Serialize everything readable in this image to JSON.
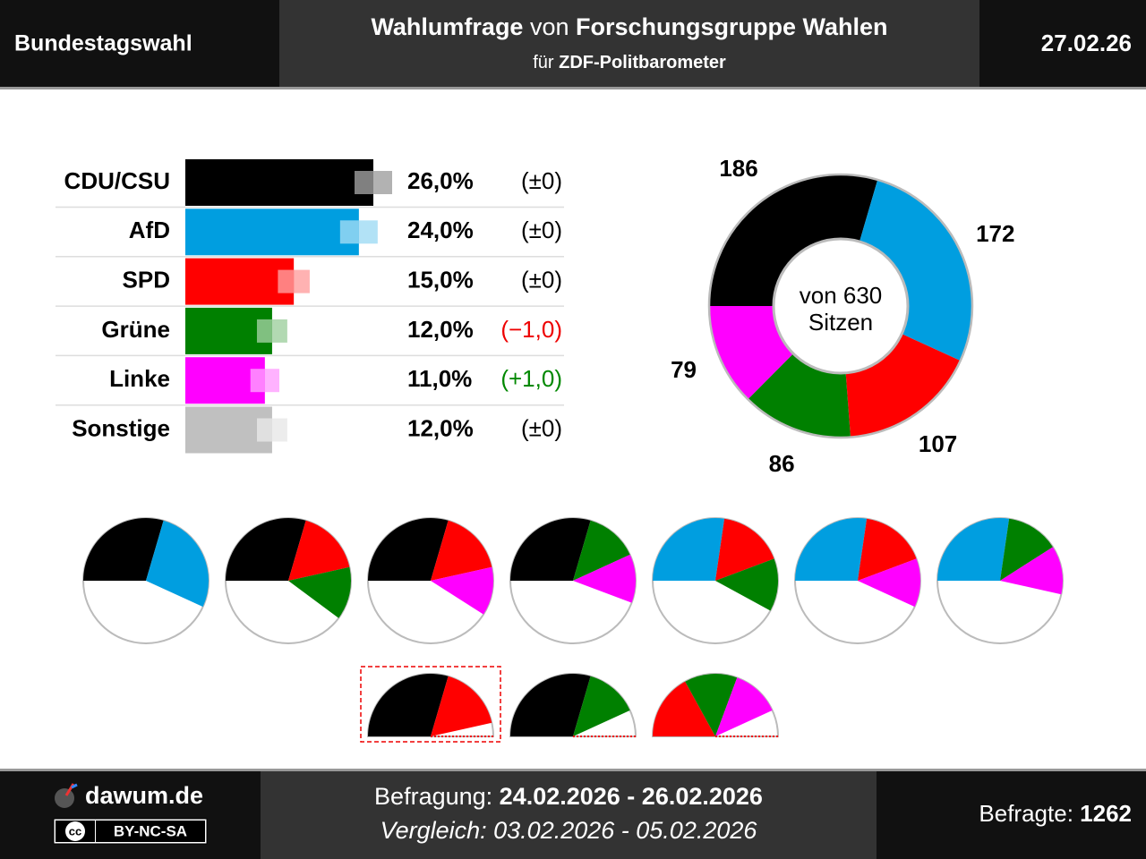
{
  "header": {
    "left": "Bundestagswahl",
    "title_lead": "Wahlumfrage",
    "title_connector": "von",
    "title_institute": "Forschungsgruppe Wahlen",
    "subtitle_prefix": "für",
    "subtitle_client": "ZDF-Politbarometer",
    "date": "27.02.26"
  },
  "footer": {
    "site": "dawum.de",
    "license_icon": "cc",
    "license": "BY-NC-SA",
    "survey_label": "Befragung:",
    "survey_period": "24.02.2026 - 26.02.2026",
    "comparison": "Vergleich: 03.02.2026 - 05.02.2026",
    "respondents_label": "Befragte:",
    "respondents": 1262
  },
  "chart_data": [
    {
      "type": "bar",
      "orientation": "horizontal",
      "categories": [
        "CDU/CSU",
        "AfD",
        "SPD",
        "Grüne",
        "Linke",
        "Sonstige"
      ],
      "colors": [
        "#000000",
        "#009ee0",
        "#ff0000",
        "#008000",
        "#ff00ff",
        "#c0c0c0"
      ],
      "values": [
        26,
        24,
        15,
        12,
        11,
        12
      ],
      "value_labels": [
        "26,0%",
        "24,0%",
        "15,0%",
        "12,0%",
        "11,0%",
        "12,0%"
      ],
      "error": [
        2.6,
        2.6,
        2.2,
        2.1,
        2.0,
        2.1
      ],
      "change": [
        0,
        0,
        0,
        -1,
        1,
        0
      ],
      "change_labels": [
        "(±0)",
        "(±0)",
        "(±0)",
        "(−1,0)",
        "(+1,0)",
        "(±0)"
      ],
      "xlim": [
        0,
        26
      ]
    },
    {
      "type": "donut",
      "categories": [
        "CDU/CSU",
        "AfD",
        "SPD",
        "Grüne",
        "Linke"
      ],
      "colors": [
        "#000000",
        "#009ee0",
        "#ff0000",
        "#008000",
        "#ff00ff"
      ],
      "values": [
        186,
        172,
        107,
        86,
        79
      ],
      "center_label": [
        "von 630",
        "Sitzen"
      ]
    },
    {
      "type": "coalition-pies",
      "coalitions": [
        {
          "parties": [
            "CDU/CSU",
            "AfD"
          ]
        },
        {
          "parties": [
            "CDU/CSU",
            "SPD",
            "Grüne"
          ]
        },
        {
          "parties": [
            "CDU/CSU",
            "SPD",
            "Linke"
          ]
        },
        {
          "parties": [
            "CDU/CSU",
            "Grüne",
            "Linke"
          ]
        },
        {
          "parties": [
            "AfD",
            "SPD",
            "Grüne"
          ]
        },
        {
          "parties": [
            "AfD",
            "SPD",
            "Linke"
          ]
        },
        {
          "parties": [
            "AfD",
            "Grüne",
            "Linke"
          ]
        },
        {
          "parties": [
            "CDU/CSU",
            "SPD"
          ],
          "highlight": true
        },
        {
          "parties": [
            "CDU/CSU",
            "Grüne"
          ]
        },
        {
          "parties": [
            "SPD",
            "Grüne",
            "Linke"
          ]
        }
      ]
    }
  ]
}
